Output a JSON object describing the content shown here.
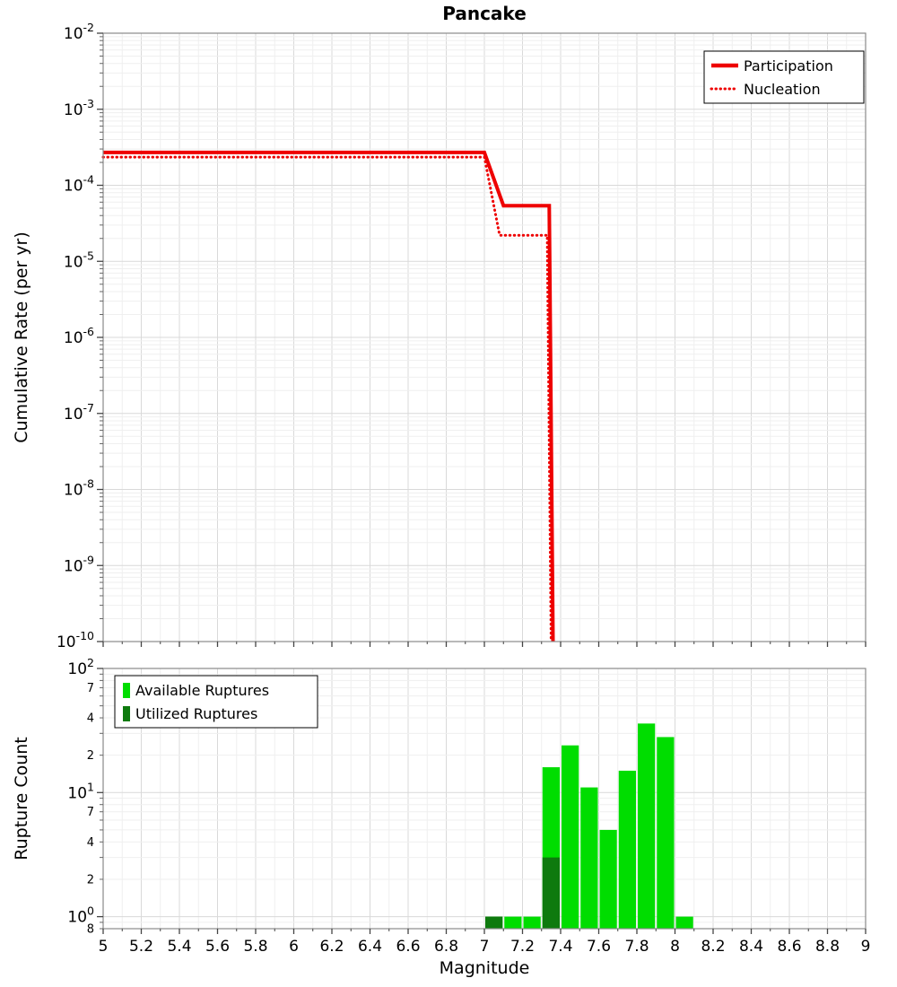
{
  "title": "Pancake",
  "colors": {
    "line_red": "#ee0000",
    "available_green": "#00dd00",
    "utilized_green": "#0e7a0e",
    "grid_major": "#d9d9d9",
    "grid_minor": "#efefef",
    "frame": "#8a8a8a",
    "legend_border": "#000000"
  },
  "chart_data": [
    {
      "type": "line",
      "title": "Pancake",
      "ylabel": "Cumulative Rate (per yr)",
      "xlabel": "Magnitude",
      "xlim": [
        5,
        9
      ],
      "ylim": [
        1e-10,
        0.01
      ],
      "y_scale": "log",
      "grid": true,
      "legend_position": "top-right",
      "y_tick_exponents": [
        -2,
        -3,
        -4,
        -5,
        -6,
        -7,
        -8,
        -9,
        -10
      ],
      "series": [
        {
          "name": "Participation",
          "style": "solid",
          "color": "#ee0000",
          "x": [
            5.0,
            7.0,
            7.1,
            7.34,
            7.36
          ],
          "y": [
            0.00027,
            0.00027,
            5.4e-05,
            5.4e-05,
            5e-11
          ]
        },
        {
          "name": "Nucleation",
          "style": "dotted",
          "color": "#ee0000",
          "x": [
            5.0,
            7.0,
            7.08,
            7.33,
            7.35
          ],
          "y": [
            0.000235,
            0.000235,
            2.2e-05,
            2.2e-05,
            5e-11
          ]
        }
      ]
    },
    {
      "type": "bar",
      "ylabel": "Rupture Count",
      "xlabel": "Magnitude",
      "xlim": [
        5,
        9
      ],
      "ylim": [
        0.8,
        100
      ],
      "y_scale": "log",
      "grid": true,
      "bar_width": 0.1,
      "legend_position": "top-left",
      "y_tick_exponents": [
        2,
        1,
        0
      ],
      "y_minor_tick_labels": [
        {
          "value": 70,
          "label": "7"
        },
        {
          "value": 40,
          "label": "4"
        },
        {
          "value": 20,
          "label": "2"
        },
        {
          "value": 7,
          "label": "7"
        },
        {
          "value": 4,
          "label": "4"
        },
        {
          "value": 2,
          "label": "2"
        },
        {
          "value": 0.8,
          "label": "8"
        }
      ],
      "x_tick_labels": [
        "5",
        "5.2",
        "5.4",
        "5.6",
        "5.8",
        "6",
        "6.2",
        "6.4",
        "6.6",
        "6.8",
        "7",
        "7.2",
        "7.4",
        "7.6",
        "7.8",
        "8",
        "8.2",
        "8.4",
        "8.6",
        "8.8",
        "9"
      ],
      "series": [
        {
          "name": "Available Ruptures",
          "color": "#00dd00",
          "x": [
            7.05,
            7.15,
            7.25,
            7.35,
            7.45,
            7.55,
            7.65,
            7.75,
            7.85,
            7.95,
            8.05
          ],
          "values": [
            1,
            1,
            1,
            16,
            24,
            11,
            5,
            15,
            36,
            28,
            1
          ]
        },
        {
          "name": "Utilized Ruptures",
          "color": "#0e7a0e",
          "x": [
            7.05,
            7.35
          ],
          "values": [
            1,
            3
          ]
        }
      ]
    }
  ]
}
